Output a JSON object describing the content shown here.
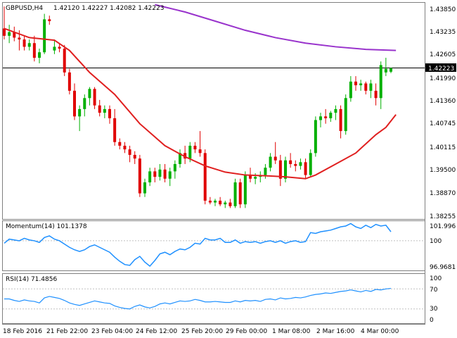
{
  "header": {
    "symbol": "GBPUSD,H4",
    "ohlc": "1.42120 1.42227 1.42082 1.42223"
  },
  "main": {
    "price_axis": [
      "1.43850",
      "1.43235",
      "1.42605",
      "1.41990",
      "1.41360",
      "1.40745",
      "1.40115",
      "1.39500",
      "1.38870",
      "1.38255"
    ],
    "current_price": "1.42223"
  },
  "momentum": {
    "title": "Momentum(14) 101.1378",
    "axis": [
      "101.996",
      "100",
      "96.9681"
    ]
  },
  "rsi": {
    "title": "RSI(14) 71.4856",
    "axis": [
      "100",
      "70",
      "30",
      "0"
    ]
  },
  "time_axis": [
    "18 Feb 2016",
    "21 Feb 22:00",
    "23 Feb 04:00",
    "24 Feb 12:00",
    "25 Feb 20:00",
    "29 Feb 00:00",
    "1 Mar 08:00",
    "2 Mar 16:00",
    "4 Mar 00:00"
  ],
  "colors": {
    "bull": "#00b000",
    "bear": "#e00000",
    "sma_fast": "#e02020",
    "sma_slow": "#9933cc",
    "indicator": "#1e90ff",
    "grid": "#c0c0c0",
    "frame": "#808080"
  },
  "chart_data": [
    {
      "type": "candlestick",
      "title": "GBPUSD,H4",
      "ylim": [
        1.381,
        1.44
      ],
      "candles": [
        {
          "o": 1.433,
          "h": 1.439,
          "l": 1.43,
          "c": 1.431
        },
        {
          "o": 1.431,
          "h": 1.434,
          "l": 1.429,
          "c": 1.432
        },
        {
          "o": 1.432,
          "h": 1.4335,
          "l": 1.4295,
          "c": 1.4305
        },
        {
          "o": 1.4305,
          "h": 1.4325,
          "l": 1.427,
          "c": 1.43
        },
        {
          "o": 1.43,
          "h": 1.431,
          "l": 1.427,
          "c": 1.428
        },
        {
          "o": 1.428,
          "h": 1.43,
          "l": 1.427,
          "c": 1.429
        },
        {
          "o": 1.429,
          "h": 1.431,
          "l": 1.424,
          "c": 1.425
        },
        {
          "o": 1.425,
          "h": 1.4275,
          "l": 1.4235,
          "c": 1.4265
        },
        {
          "o": 1.4265,
          "h": 1.437,
          "l": 1.426,
          "c": 1.4355
        },
        {
          "o": 1.4355,
          "h": 1.4365,
          "l": 1.434,
          "c": 1.435
        },
        {
          "o": 1.427,
          "h": 1.43,
          "l": 1.426,
          "c": 1.428
        },
        {
          "o": 1.428,
          "h": 1.429,
          "l": 1.4265,
          "c": 1.4275
        },
        {
          "o": 1.4275,
          "h": 1.4285,
          "l": 1.42,
          "c": 1.421
        },
        {
          "o": 1.421,
          "h": 1.422,
          "l": 1.415,
          "c": 1.416
        },
        {
          "o": 1.416,
          "h": 1.418,
          "l": 1.408,
          "c": 1.409
        },
        {
          "o": 1.409,
          "h": 1.412,
          "l": 1.405,
          "c": 1.411
        },
        {
          "o": 1.411,
          "h": 1.415,
          "l": 1.409,
          "c": 1.414
        },
        {
          "o": 1.414,
          "h": 1.417,
          "l": 1.412,
          "c": 1.4165
        },
        {
          "o": 1.4165,
          "h": 1.417,
          "l": 1.411,
          "c": 1.412
        },
        {
          "o": 1.412,
          "h": 1.4135,
          "l": 1.409,
          "c": 1.41
        },
        {
          "o": 1.41,
          "h": 1.412,
          "l": 1.4085,
          "c": 1.411
        },
        {
          "o": 1.411,
          "h": 1.412,
          "l": 1.407,
          "c": 1.4085
        },
        {
          "o": 1.4085,
          "h": 1.411,
          "l": 1.401,
          "c": 1.402
        },
        {
          "o": 1.402,
          "h": 1.403,
          "l": 1.4,
          "c": 1.401
        },
        {
          "o": 1.401,
          "h": 1.402,
          "l": 1.399,
          "c": 1.4
        },
        {
          "o": 1.4,
          "h": 1.401,
          "l": 1.3965,
          "c": 1.3985
        },
        {
          "o": 1.3985,
          "h": 1.3995,
          "l": 1.396,
          "c": 1.3975
        },
        {
          "o": 1.3975,
          "h": 1.3985,
          "l": 1.387,
          "c": 1.388
        },
        {
          "o": 1.388,
          "h": 1.392,
          "l": 1.387,
          "c": 1.391
        },
        {
          "o": 1.391,
          "h": 1.395,
          "l": 1.39,
          "c": 1.394
        },
        {
          "o": 1.394,
          "h": 1.395,
          "l": 1.391,
          "c": 1.3925
        },
        {
          "o": 1.3925,
          "h": 1.396,
          "l": 1.3915,
          "c": 1.3945
        },
        {
          "o": 1.3945,
          "h": 1.396,
          "l": 1.391,
          "c": 1.392
        },
        {
          "o": 1.392,
          "h": 1.395,
          "l": 1.39,
          "c": 1.394
        },
        {
          "o": 1.394,
          "h": 1.397,
          "l": 1.392,
          "c": 1.396
        },
        {
          "o": 1.396,
          "h": 1.4,
          "l": 1.395,
          "c": 1.399
        },
        {
          "o": 1.399,
          "h": 1.401,
          "l": 1.396,
          "c": 1.3975
        },
        {
          "o": 1.3975,
          "h": 1.402,
          "l": 1.3965,
          "c": 1.401
        },
        {
          "o": 1.401,
          "h": 1.402,
          "l": 1.399,
          "c": 1.4
        },
        {
          "o": 1.4,
          "h": 1.405,
          "l": 1.398,
          "c": 1.399
        },
        {
          "o": 1.399,
          "h": 1.4,
          "l": 1.385,
          "c": 1.386
        },
        {
          "o": 1.386,
          "h": 1.387,
          "l": 1.385,
          "c": 1.3855
        },
        {
          "o": 1.3855,
          "h": 1.3865,
          "l": 1.3845,
          "c": 1.386
        },
        {
          "o": 1.386,
          "h": 1.387,
          "l": 1.3845,
          "c": 1.385
        },
        {
          "o": 1.385,
          "h": 1.386,
          "l": 1.384,
          "c": 1.3855
        },
        {
          "o": 1.3855,
          "h": 1.3865,
          "l": 1.384,
          "c": 1.3845
        },
        {
          "o": 1.3845,
          "h": 1.392,
          "l": 1.384,
          "c": 1.391
        },
        {
          "o": 1.391,
          "h": 1.392,
          "l": 1.384,
          "c": 1.385
        },
        {
          "o": 1.385,
          "h": 1.394,
          "l": 1.384,
          "c": 1.393
        },
        {
          "o": 1.393,
          "h": 1.395,
          "l": 1.391,
          "c": 1.392
        },
        {
          "o": 1.392,
          "h": 1.3935,
          "l": 1.3905,
          "c": 1.3925
        },
        {
          "o": 1.3925,
          "h": 1.394,
          "l": 1.391,
          "c": 1.393
        },
        {
          "o": 1.393,
          "h": 1.396,
          "l": 1.392,
          "c": 1.395
        },
        {
          "o": 1.395,
          "h": 1.399,
          "l": 1.394,
          "c": 1.398
        },
        {
          "o": 1.398,
          "h": 1.402,
          "l": 1.396,
          "c": 1.397
        },
        {
          "o": 1.397,
          "h": 1.3985,
          "l": 1.39,
          "c": 1.392
        },
        {
          "o": 1.392,
          "h": 1.398,
          "l": 1.391,
          "c": 1.397
        },
        {
          "o": 1.397,
          "h": 1.399,
          "l": 1.395,
          "c": 1.396
        },
        {
          "o": 1.396,
          "h": 1.397,
          "l": 1.394,
          "c": 1.3955
        },
        {
          "o": 1.3955,
          "h": 1.3975,
          "l": 1.3945,
          "c": 1.3965
        },
        {
          "o": 1.3965,
          "h": 1.3975,
          "l": 1.392,
          "c": 1.393
        },
        {
          "o": 1.393,
          "h": 1.4,
          "l": 1.3925,
          "c": 1.399
        },
        {
          "o": 1.399,
          "h": 1.409,
          "l": 1.398,
          "c": 1.408
        },
        {
          "o": 1.408,
          "h": 1.41,
          "l": 1.406,
          "c": 1.409
        },
        {
          "o": 1.409,
          "h": 1.411,
          "l": 1.407,
          "c": 1.4085
        },
        {
          "o": 1.4085,
          "h": 1.4105,
          "l": 1.4075,
          "c": 1.41
        },
        {
          "o": 1.41,
          "h": 1.412,
          "l": 1.408,
          "c": 1.411
        },
        {
          "o": 1.411,
          "h": 1.412,
          "l": 1.403,
          "c": 1.405
        },
        {
          "o": 1.405,
          "h": 1.415,
          "l": 1.404,
          "c": 1.414
        },
        {
          "o": 1.414,
          "h": 1.42,
          "l": 1.413,
          "c": 1.4185
        },
        {
          "o": 1.4185,
          "h": 1.42,
          "l": 1.416,
          "c": 1.4175
        },
        {
          "o": 1.4175,
          "h": 1.419,
          "l": 1.416,
          "c": 1.418
        },
        {
          "o": 1.418,
          "h": 1.4185,
          "l": 1.415,
          "c": 1.416
        },
        {
          "o": 1.416,
          "h": 1.419,
          "l": 1.414,
          "c": 1.418
        },
        {
          "o": 1.416,
          "h": 1.418,
          "l": 1.412,
          "c": 1.414
        },
        {
          "o": 1.414,
          "h": 1.424,
          "l": 1.411,
          "c": 1.423
        },
        {
          "o": 1.421,
          "h": 1.425,
          "l": 1.42,
          "c": 1.422
        },
        {
          "o": 1.4212,
          "h": 1.4223,
          "l": 1.4208,
          "c": 1.4222
        }
      ],
      "sma_fast": [
        [
          0,
          1.433
        ],
        [
          5,
          1.4305
        ],
        [
          10,
          1.4298
        ],
        [
          13,
          1.427
        ],
        [
          17,
          1.421
        ],
        [
          22,
          1.415
        ],
        [
          27,
          1.407
        ],
        [
          32,
          1.401
        ],
        [
          36,
          1.398
        ],
        [
          40,
          1.3955
        ],
        [
          44,
          1.3938
        ],
        [
          48,
          1.393
        ],
        [
          52,
          1.3928
        ],
        [
          56,
          1.3925
        ],
        [
          60,
          1.392
        ],
        [
          62,
          1.393
        ],
        [
          66,
          1.396
        ],
        [
          70,
          1.399
        ],
        [
          74,
          1.404
        ],
        [
          76,
          1.406
        ],
        [
          78,
          1.4095
        ]
      ],
      "sma_slow": [
        [
          30,
          1.4395
        ],
        [
          36,
          1.4375
        ],
        [
          42,
          1.435
        ],
        [
          48,
          1.4325
        ],
        [
          54,
          1.4305
        ],
        [
          60,
          1.429
        ],
        [
          66,
          1.428
        ],
        [
          72,
          1.4273
        ],
        [
          78,
          1.427
        ]
      ]
    },
    {
      "type": "line",
      "title": "Momentum(14) 101.1378",
      "ylim": [
        96.3,
        102.4
      ],
      "reference": 100,
      "values": [
        99.7,
        100.2,
        100.1,
        100.0,
        100.3,
        100.1,
        100.0,
        99.8,
        100.4,
        100.6,
        100.2,
        100.0,
        99.6,
        99.2,
        98.9,
        98.7,
        98.9,
        99.3,
        99.5,
        99.2,
        98.9,
        98.6,
        98.0,
        97.5,
        97.1,
        97.0,
        97.7,
        98.1,
        97.4,
        96.9,
        97.6,
        98.4,
        98.6,
        98.3,
        98.7,
        99.0,
        98.9,
        99.2,
        99.7,
        99.6,
        100.3,
        100.1,
        100.1,
        100.3,
        99.8,
        99.8,
        100.1,
        99.7,
        99.9,
        99.8,
        99.9,
        99.7,
        99.9,
        100.0,
        99.8,
        100.0,
        99.7,
        99.9,
        100.0,
        99.8,
        99.9,
        101.0,
        100.9,
        101.1,
        101.2,
        101.3,
        101.5,
        101.7,
        101.8,
        102.1,
        101.7,
        101.5,
        101.9,
        101.6,
        102.0,
        101.8,
        101.9,
        101.1
      ]
    },
    {
      "type": "line",
      "title": "RSI(14) 71.4856",
      "ylim": [
        0,
        100
      ],
      "levels": [
        30,
        70
      ],
      "values": [
        50,
        50,
        47,
        45,
        48,
        46,
        45,
        42,
        52,
        55,
        53,
        51,
        47,
        42,
        39,
        37,
        40,
        43,
        46,
        44,
        42,
        41,
        36,
        33,
        31,
        30,
        35,
        38,
        34,
        32,
        35,
        40,
        42,
        40,
        43,
        46,
        45,
        46,
        49,
        47,
        44,
        44,
        45,
        44,
        43,
        43,
        46,
        44,
        47,
        46,
        47,
        45,
        49,
        50,
        48,
        52,
        50,
        51,
        53,
        52,
        54,
        57,
        59,
        60,
        62,
        61,
        63,
        65,
        66,
        68,
        66,
        64,
        67,
        65,
        69,
        68,
        70,
        71
      ]
    }
  ]
}
